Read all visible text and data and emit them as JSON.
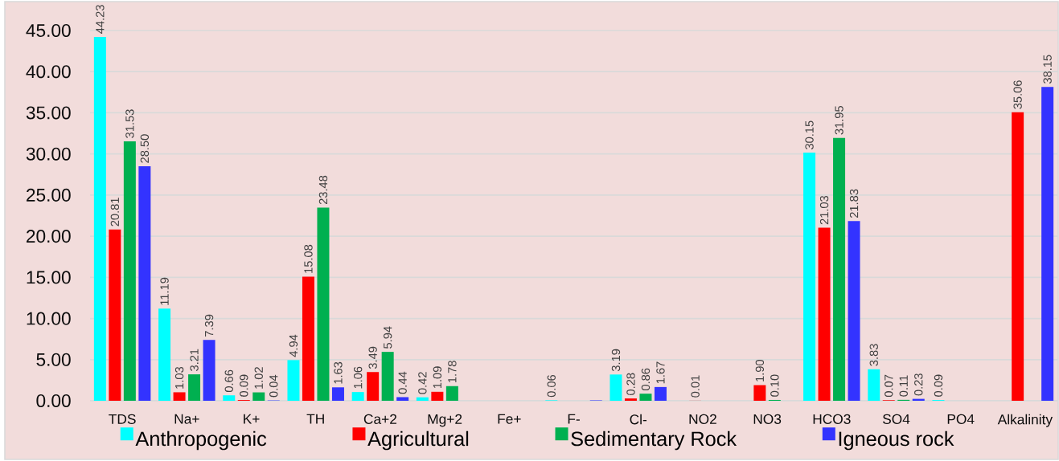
{
  "chart_data": {
    "type": "bar",
    "categories": [
      "TDS",
      "Na+",
      "K+",
      "TH",
      "Ca+2",
      "Mg+2",
      "Fe+",
      "F-",
      "Cl-",
      "NO2",
      "NO3",
      "HCO3",
      "SO4",
      "PO4",
      "Alkalinity"
    ],
    "series": [
      {
        "name": "Anthropogenic",
        "color": "#00ffff",
        "values": [
          44.23,
          11.19,
          0.66,
          4.94,
          1.06,
          0.42,
          null,
          0.06,
          3.19,
          null,
          null,
          30.15,
          3.83,
          0.09,
          null
        ],
        "value_labels": [
          "44.23",
          "11.19",
          "0.66",
          "4.94",
          "1.06",
          "0.42",
          null,
          "0.06",
          "3.19",
          null,
          null,
          "30.15",
          "3.83",
          "0.09",
          null
        ]
      },
      {
        "name": "Agricultural",
        "color": "#ff0000",
        "values": [
          20.81,
          1.03,
          0.09,
          15.08,
          3.49,
          1.09,
          null,
          null,
          0.28,
          0.01,
          1.9,
          21.03,
          0.07,
          null,
          35.06
        ],
        "value_labels": [
          "20.81",
          "1.03",
          "0.09",
          "15.08",
          "3.49",
          "1.09",
          null,
          null,
          "0.28",
          "0.01",
          "1.90",
          "21.03",
          "0.07",
          null,
          "35.06"
        ]
      },
      {
        "name": "Sedimentary Rock",
        "color": "#00b050",
        "values": [
          31.53,
          3.21,
          1.02,
          23.48,
          5.94,
          1.78,
          null,
          null,
          0.86,
          null,
          0.1,
          31.95,
          0.11,
          null,
          null
        ],
        "value_labels": [
          "31.53",
          "3.21",
          "1.02",
          "23.48",
          "5.94",
          "1.78",
          null,
          null,
          "0.86",
          null,
          "0.10",
          "31.95",
          "0.11",
          null,
          null
        ]
      },
      {
        "name": "Igneous rock",
        "color": "#3333ff",
        "values": [
          28.5,
          7.39,
          0.04,
          1.63,
          0.44,
          null,
          null,
          0.05,
          1.67,
          null,
          null,
          21.83,
          0.23,
          null,
          38.15
        ],
        "value_labels": [
          "28.50",
          "7.39",
          "0.04",
          "1.63",
          "0.44",
          null,
          null,
          null,
          "1.67",
          null,
          null,
          "21.83",
          "0.23",
          null,
          "38.15"
        ]
      }
    ],
    "ylim": [
      0,
      45
    ],
    "yticks": [
      {
        "value": 0,
        "label": "0.00"
      },
      {
        "value": 5,
        "label": "5.00"
      },
      {
        "value": 10,
        "label": "10.00"
      },
      {
        "value": 15,
        "label": "15.00"
      },
      {
        "value": 20,
        "label": "20.00"
      },
      {
        "value": 25,
        "label": "25.00"
      },
      {
        "value": 30,
        "label": "30.00"
      },
      {
        "value": 35,
        "label": "35.00"
      },
      {
        "value": 40,
        "label": "40.00"
      },
      {
        "value": 45,
        "label": "45.00"
      }
    ],
    "grid": "y",
    "legend": "bottom"
  }
}
